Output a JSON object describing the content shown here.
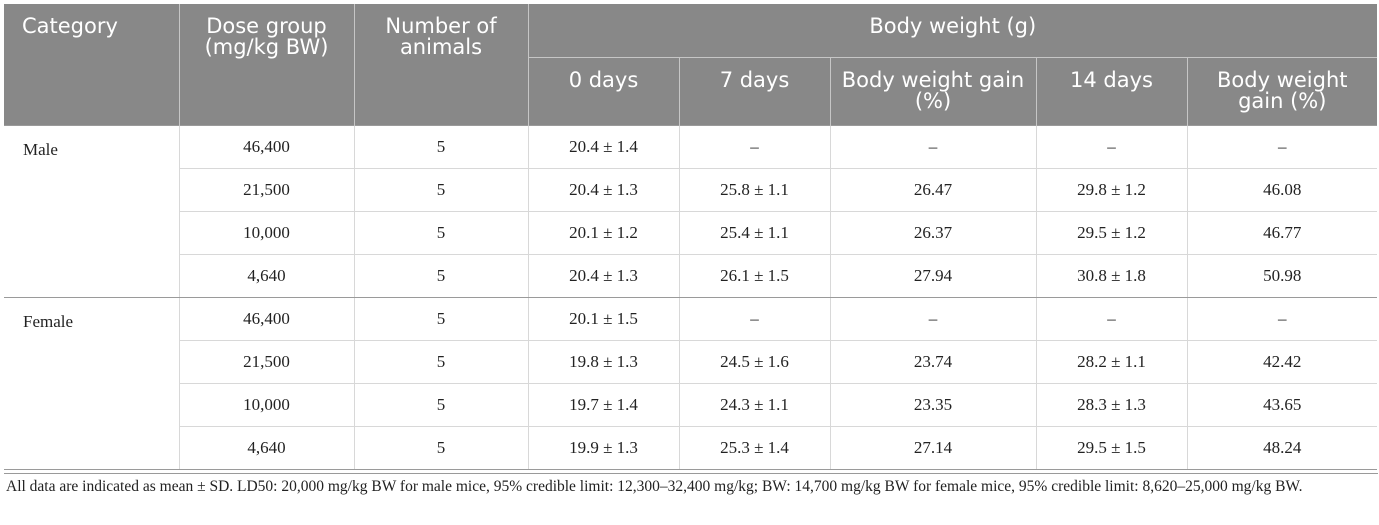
{
  "header": {
    "category": "Category",
    "dose_group": "Dose group (mg/kg BW)",
    "num_animals": "Number of animals",
    "body_weight": "Body weight (g)",
    "sub": [
      "0 days",
      "7 days",
      "Body weight gain (%)",
      "14 days",
      "Body weight gain (%)"
    ]
  },
  "groups": [
    {
      "category": "Male",
      "rows": [
        {
          "dose": "46,400",
          "n": "5",
          "d0": "20.4 ± 1.4",
          "d7": "–",
          "g7": "–",
          "d14": "–",
          "g14": "–"
        },
        {
          "dose": "21,500",
          "n": "5",
          "d0": "20.4 ± 1.3",
          "d7": "25.8 ± 1.1",
          "g7": "26.47",
          "d14": "29.8 ± 1.2",
          "g14": "46.08"
        },
        {
          "dose": "10,000",
          "n": "5",
          "d0": "20.1 ± 1.2",
          "d7": "25.4 ± 1.1",
          "g7": "26.37",
          "d14": "29.5 ± 1.2",
          "g14": "46.77"
        },
        {
          "dose": "4,640",
          "n": "5",
          "d0": "20.4 ± 1.3",
          "d7": "26.1 ± 1.5",
          "g7": "27.94",
          "d14": "30.8 ± 1.8",
          "g14": "50.98"
        }
      ]
    },
    {
      "category": "Female",
      "rows": [
        {
          "dose": "46,400",
          "n": "5",
          "d0": "20.1 ± 1.5",
          "d7": "–",
          "g7": "–",
          "d14": "–",
          "g14": "–"
        },
        {
          "dose": "21,500",
          "n": "5",
          "d0": "19.8 ± 1.3",
          "d7": "24.5 ± 1.6",
          "g7": "23.74",
          "d14": "28.2 ± 1.1",
          "g14": "42.42"
        },
        {
          "dose": "10,000",
          "n": "5",
          "d0": "19.7 ± 1.4",
          "d7": "24.3 ± 1.1",
          "g7": "23.35",
          "d14": "28.3 ± 1.3",
          "g14": "43.65"
        },
        {
          "dose": "4,640",
          "n": "5",
          "d0": "19.9 ± 1.3",
          "d7": "25.3 ± 1.4",
          "g7": "27.14",
          "d14": "29.5 ± 1.5",
          "g14": "48.24"
        }
      ]
    }
  ],
  "footnote": "All data are indicated as mean ± SD. LD50: 20,000 mg/kg BW for male mice, 95% credible limit: 12,300–32,400 mg/kg; BW: 14,700 mg/kg BW for female mice, 95% credible limit: 8,620–25,000 mg/kg BW."
}
